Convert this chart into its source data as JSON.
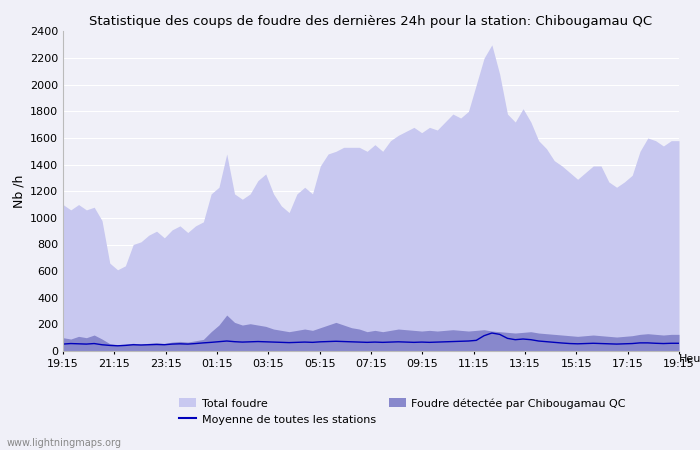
{
  "title": "Statistique des coups de foudre des dernières 24h pour la station: Chibougamau QC",
  "ylabel": "Nb /h",
  "xlabel": "Heure",
  "watermark": "www.lightningmaps.org",
  "ylim": [
    0,
    2400
  ],
  "xtick_labels": [
    "19:15",
    "21:15",
    "23:15",
    "01:15",
    "03:15",
    "05:15",
    "07:15",
    "09:15",
    "11:15",
    "13:15",
    "15:15",
    "17:15",
    "19:15"
  ],
  "total_foudre_color": "#c8c8f0",
  "detected_color": "#8888cc",
  "mean_line_color": "#0000bb",
  "background_color": "#f0f0f8",
  "plot_bg_color": "#f0f0f8",
  "grid_color": "#ffffff",
  "total_foudre": [
    1100,
    1060,
    1100,
    1060,
    1080,
    980,
    660,
    610,
    640,
    800,
    820,
    870,
    900,
    850,
    910,
    940,
    890,
    940,
    970,
    1180,
    1230,
    1480,
    1180,
    1140,
    1180,
    1280,
    1330,
    1180,
    1090,
    1040,
    1180,
    1230,
    1180,
    1390,
    1480,
    1500,
    1530,
    1530,
    1530,
    1500,
    1550,
    1500,
    1580,
    1620,
    1650,
    1680,
    1640,
    1680,
    1660,
    1720,
    1780,
    1750,
    1800,
    2000,
    2200,
    2300,
    2080,
    1780,
    1720,
    1820,
    1720,
    1580,
    1520,
    1430,
    1390,
    1340,
    1290,
    1340,
    1390,
    1390,
    1270,
    1230,
    1270,
    1320,
    1500,
    1600,
    1580,
    1540,
    1580,
    1580
  ],
  "detected_foudre": [
    100,
    90,
    110,
    100,
    120,
    90,
    55,
    48,
    52,
    58,
    52,
    58,
    62,
    57,
    67,
    72,
    67,
    77,
    87,
    145,
    195,
    270,
    215,
    195,
    205,
    195,
    185,
    165,
    155,
    145,
    155,
    165,
    155,
    175,
    195,
    215,
    195,
    175,
    165,
    145,
    155,
    145,
    155,
    165,
    160,
    155,
    150,
    155,
    150,
    155,
    160,
    155,
    150,
    155,
    160,
    150,
    145,
    140,
    135,
    140,
    145,
    135,
    130,
    125,
    120,
    115,
    110,
    115,
    120,
    115,
    110,
    105,
    110,
    115,
    125,
    130,
    125,
    120,
    125,
    125
  ],
  "mean_line": [
    52,
    56,
    54,
    52,
    56,
    47,
    42,
    39,
    42,
    47,
    45,
    47,
    49,
    47,
    52,
    54,
    52,
    56,
    61,
    65,
    70,
    75,
    70,
    67,
    69,
    71,
    69,
    67,
    65,
    63,
    65,
    67,
    65,
    69,
    71,
    73,
    71,
    69,
    67,
    65,
    67,
    65,
    67,
    69,
    67,
    65,
    67,
    65,
    67,
    69,
    71,
    73,
    75,
    80,
    115,
    135,
    125,
    95,
    85,
    90,
    85,
    75,
    70,
    65,
    60,
    56,
    54,
    56,
    58,
    56,
    54,
    52,
    54,
    56,
    61,
    61,
    58,
    56,
    58,
    58
  ]
}
